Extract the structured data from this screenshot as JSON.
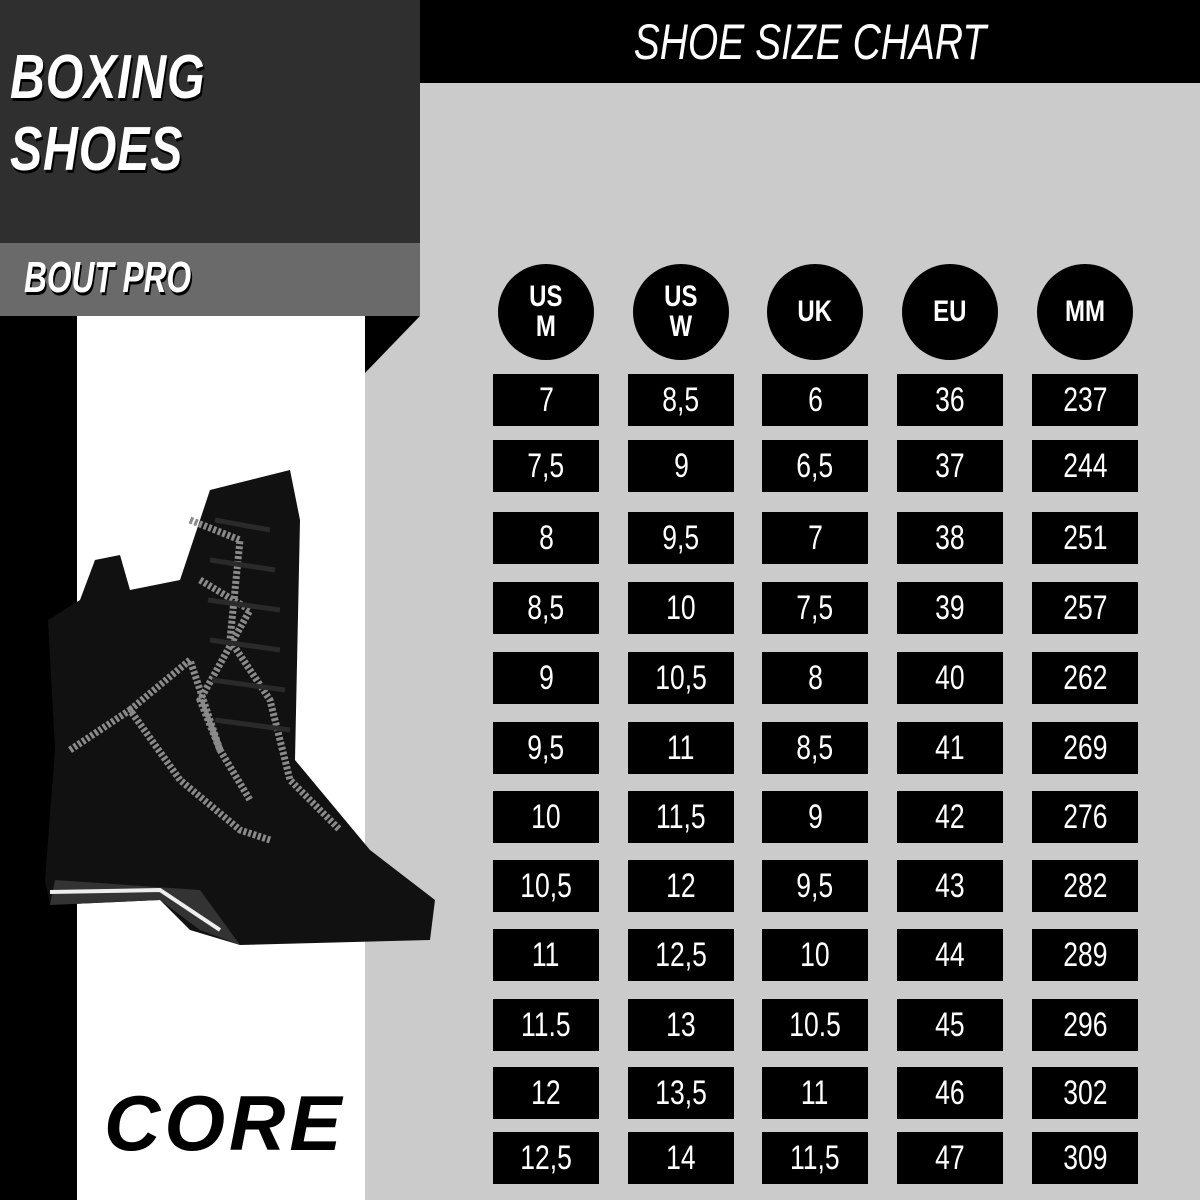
{
  "header": {
    "title": "BOXING\nSHOES",
    "model": "BOUT PRO",
    "chart_title": "SHOE SIZE CHART",
    "brand_logo": "CORE"
  },
  "colors": {
    "dark_panel": "#2f2f2f",
    "model_band": "#6a6a6a",
    "chart_bg": "#cbcbcb",
    "cell_bg": "#000000",
    "text": "#ffffff"
  },
  "product_image": "black high-top boxing shoes",
  "chart_data": {
    "type": "table",
    "title": "SHOE SIZE CHART",
    "columns": [
      "US\nM",
      "US\nW",
      "UK",
      "EU",
      "MM"
    ],
    "rows": [
      [
        "7",
        "8,5",
        "6",
        "36",
        "237"
      ],
      [
        "7,5",
        "9",
        "6,5",
        "37",
        "244"
      ],
      [
        "8",
        "9,5",
        "7",
        "38",
        "251"
      ],
      [
        "8,5",
        "10",
        "7,5",
        "39",
        "257"
      ],
      [
        "9",
        "10,5",
        "8",
        "40",
        "262"
      ],
      [
        "9,5",
        "11",
        "8,5",
        "41",
        "269"
      ],
      [
        "10",
        "11,5",
        "9",
        "42",
        "276"
      ],
      [
        "10,5",
        "12",
        "9,5",
        "43",
        "282"
      ],
      [
        "11",
        "12,5",
        "10",
        "44",
        "289"
      ],
      [
        "11.5",
        "13",
        "10.5",
        "45",
        "296"
      ],
      [
        "12",
        "13,5",
        "11",
        "46",
        "302"
      ],
      [
        "12,5",
        "14",
        "11,5",
        "47",
        "309"
      ]
    ]
  }
}
